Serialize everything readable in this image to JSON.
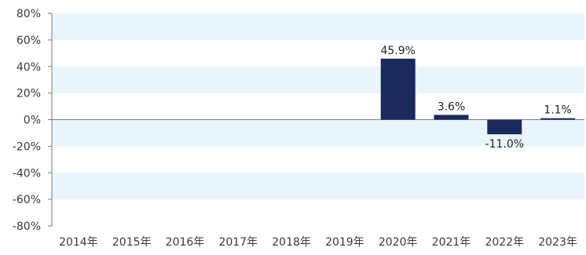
{
  "chart_data": {
    "type": "bar",
    "title": "",
    "xlabel": "",
    "ylabel": "",
    "categories": [
      "2014年",
      "2015年",
      "2016年",
      "2017年",
      "2018年",
      "2019年",
      "2020年",
      "2021年",
      "2022年",
      "2023年"
    ],
    "values": [
      null,
      null,
      null,
      null,
      null,
      null,
      45.9,
      3.6,
      -11.0,
      1.1
    ],
    "data_labels": [
      "",
      "",
      "",
      "",
      "",
      "",
      "45.9%",
      "3.6%",
      "-11.0%",
      "1.1%"
    ],
    "ylim": [
      -80,
      80
    ],
    "yticks": [
      80,
      60,
      40,
      20,
      0,
      -20,
      -40,
      -60,
      -80
    ],
    "ytick_labels": [
      "80%",
      "60%",
      "40%",
      "20%",
      "0%",
      "-20%",
      "-40%",
      "-60%",
      "-80%"
    ],
    "grid": "alternating horizontal bands",
    "legend": "none",
    "colors": {
      "bar": "#1b2a5c",
      "band": "#eaf4fb",
      "axis": "#7a7a7a",
      "tick_text": "#3a3a3a",
      "label_text": "#222222"
    }
  }
}
